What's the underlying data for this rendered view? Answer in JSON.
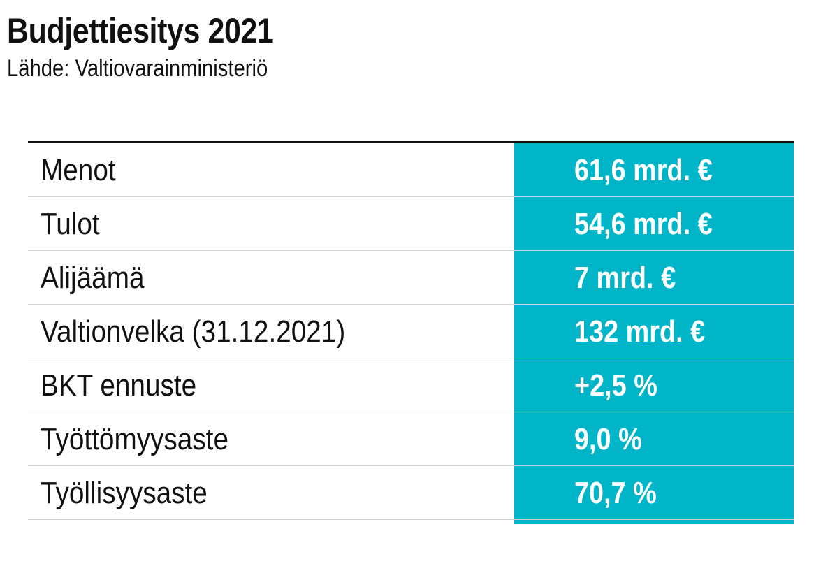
{
  "title": "Budjettiesitys 2021",
  "subtitle": "Lähde: Valtiovarainministeriö",
  "colors": {
    "value_band": "#00b5c8",
    "value_text": "#ffffff",
    "label_text": "#111111",
    "rule": "#111111",
    "row_divider": "#d4d4d4"
  },
  "chart_data": {
    "type": "table",
    "title": "Budjettiesitys 2021",
    "subtitle": "Lähde: Valtiovarainministeriö",
    "rows": [
      {
        "label": "Menot",
        "value": "61,6 mrd. €"
      },
      {
        "label": "Tulot",
        "value": "54,6 mrd. €"
      },
      {
        "label": "Alijäämä",
        "value": "7 mrd. €"
      },
      {
        "label": "Valtionvelka (31.12.2021)",
        "value": "132 mrd. €"
      },
      {
        "label": "BKT ennuste",
        "value": "+2,5 %"
      },
      {
        "label": "Työttömyysaste",
        "value": "9,0 %"
      },
      {
        "label": "Työllisyysaste",
        "value": "70,7 %"
      }
    ]
  }
}
